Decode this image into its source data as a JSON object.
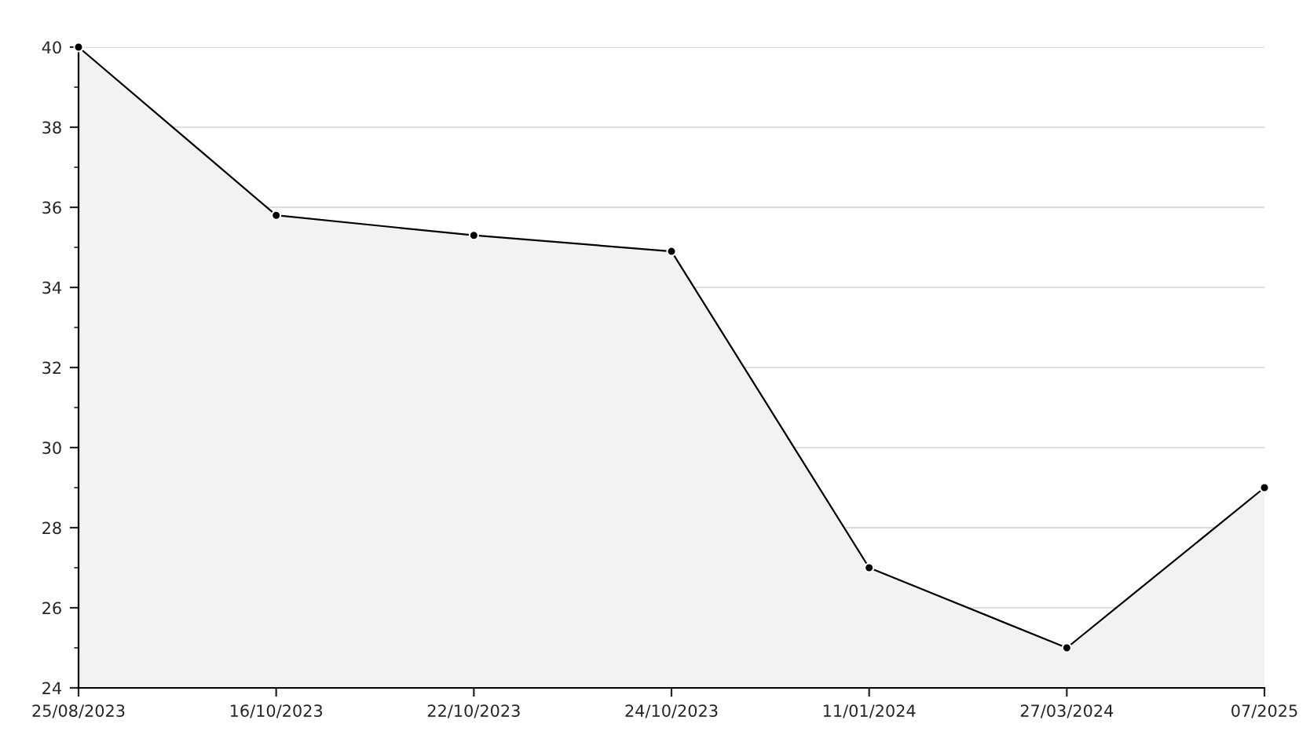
{
  "chart_data": {
    "type": "area",
    "categories": [
      "25/08/2023",
      "16/10/2023",
      "22/10/2023",
      "24/10/2023",
      "11/01/2024",
      "27/03/2024",
      "07/2025"
    ],
    "series": [
      {
        "color": "#000000",
        "values": [
          40,
          35.8,
          35.3,
          34.9,
          27,
          25,
          29
        ]
      }
    ],
    "ylim": [
      24,
      40
    ],
    "yticks": [
      24,
      26,
      28,
      30,
      32,
      34,
      36,
      38,
      40
    ],
    "grid": "y",
    "marker": "circle",
    "line_style": "solid",
    "legend": false
  }
}
